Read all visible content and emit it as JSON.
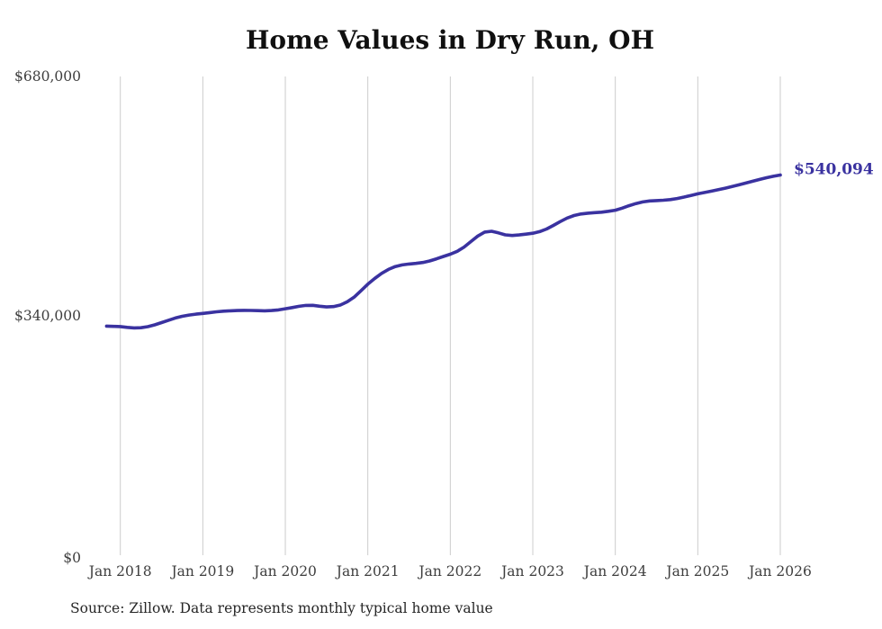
{
  "chart": {
    "title": "Home Values in Dry Run, OH",
    "source": "Source: Zillow. Data represents monthly typical home value"
  },
  "chart_data": {
    "type": "line",
    "title": "Home Values in Dry Run, OH",
    "source": "Source: Zillow. Data represents monthly typical home value",
    "x_ticks": [
      "Jan 2018",
      "Jan 2019",
      "Jan 2020",
      "Jan 2021",
      "Jan 2022",
      "Jan 2023",
      "Jan 2024",
      "Jan 2025",
      "Jan 2026"
    ],
    "y_ticks": [
      {
        "label": "$680,000",
        "value": 680000
      },
      {
        "label": "$340,000",
        "value": 340000
      },
      {
        "label": "$0",
        "value": 0
      }
    ],
    "ylim": [
      0,
      680000
    ],
    "grid": "vertical-only",
    "legend": "none",
    "interval": "monthly",
    "x_start": "Nov 2017",
    "x_end": "Jan 2026",
    "x_start_month_offset": -2,
    "end_label": "$540,094",
    "latest_value": 540094,
    "line_color": "#3a32a0",
    "tick_label_color": "#3e3e3e",
    "grid_color": "#cccccc",
    "series": [
      {
        "name": "Typical home value",
        "values": [
          325400,
          325100,
          324800,
          323600,
          322900,
          323100,
          324600,
          327200,
          330400,
          333800,
          336900,
          339400,
          341200,
          342400,
          343400,
          344600,
          345700,
          346600,
          347200,
          347600,
          347800,
          347700,
          347400,
          347200,
          347500,
          348500,
          350100,
          351800,
          353500,
          354800,
          354900,
          353700,
          352600,
          353200,
          355400,
          360000,
          366500,
          375500,
          385000,
          393000,
          400300,
          406000,
          410000,
          412400,
          413600,
          414500,
          415800,
          418000,
          421000,
          424300,
          427600,
          431600,
          437700,
          445600,
          453400,
          459000,
          460200,
          457800,
          455100,
          454200,
          454900,
          456100,
          457400,
          459700,
          463300,
          468500,
          474000,
          479000,
          482500,
          484700,
          485900,
          486600,
          487300,
          488500,
          490000,
          493000,
          496500,
          499500,
          501800,
          503200,
          503800,
          504300,
          505200,
          506700,
          508700,
          511000,
          513300,
          515300,
          517200,
          519200,
          521400,
          523700,
          526100,
          528600,
          531200,
          533800,
          536200,
          538300,
          540094
        ]
      }
    ]
  }
}
